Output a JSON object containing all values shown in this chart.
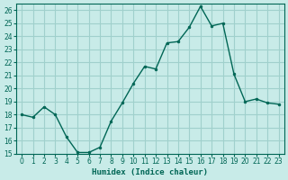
{
  "xlabel": "Humidex (Indice chaleur)",
  "ylabel": "",
  "background_color": "#c8ebe8",
  "grid_color": "#a0d0cc",
  "line_color": "#006655",
  "marker_color": "#006655",
  "xlim": [
    -0.5,
    23.5
  ],
  "ylim": [
    15,
    26.5
  ],
  "yticks": [
    15,
    16,
    17,
    18,
    19,
    20,
    21,
    22,
    23,
    24,
    25,
    26
  ],
  "xticks": [
    0,
    1,
    2,
    3,
    4,
    5,
    6,
    7,
    8,
    9,
    10,
    11,
    12,
    13,
    14,
    15,
    16,
    17,
    18,
    19,
    20,
    21,
    22,
    23
  ],
  "x": [
    0,
    1,
    2,
    3,
    4,
    5,
    6,
    7,
    8,
    9,
    10,
    11,
    12,
    13,
    14,
    15,
    16,
    17,
    18,
    19,
    20,
    21,
    22,
    23
  ],
  "y": [
    18.0,
    17.8,
    18.6,
    18.0,
    16.3,
    15.1,
    15.1,
    15.5,
    17.5,
    18.9,
    20.4,
    21.7,
    21.5,
    23.5,
    23.6,
    24.7,
    26.3,
    24.8,
    25.0,
    21.1,
    19.0,
    19.2,
    18.9,
    18.8
  ]
}
